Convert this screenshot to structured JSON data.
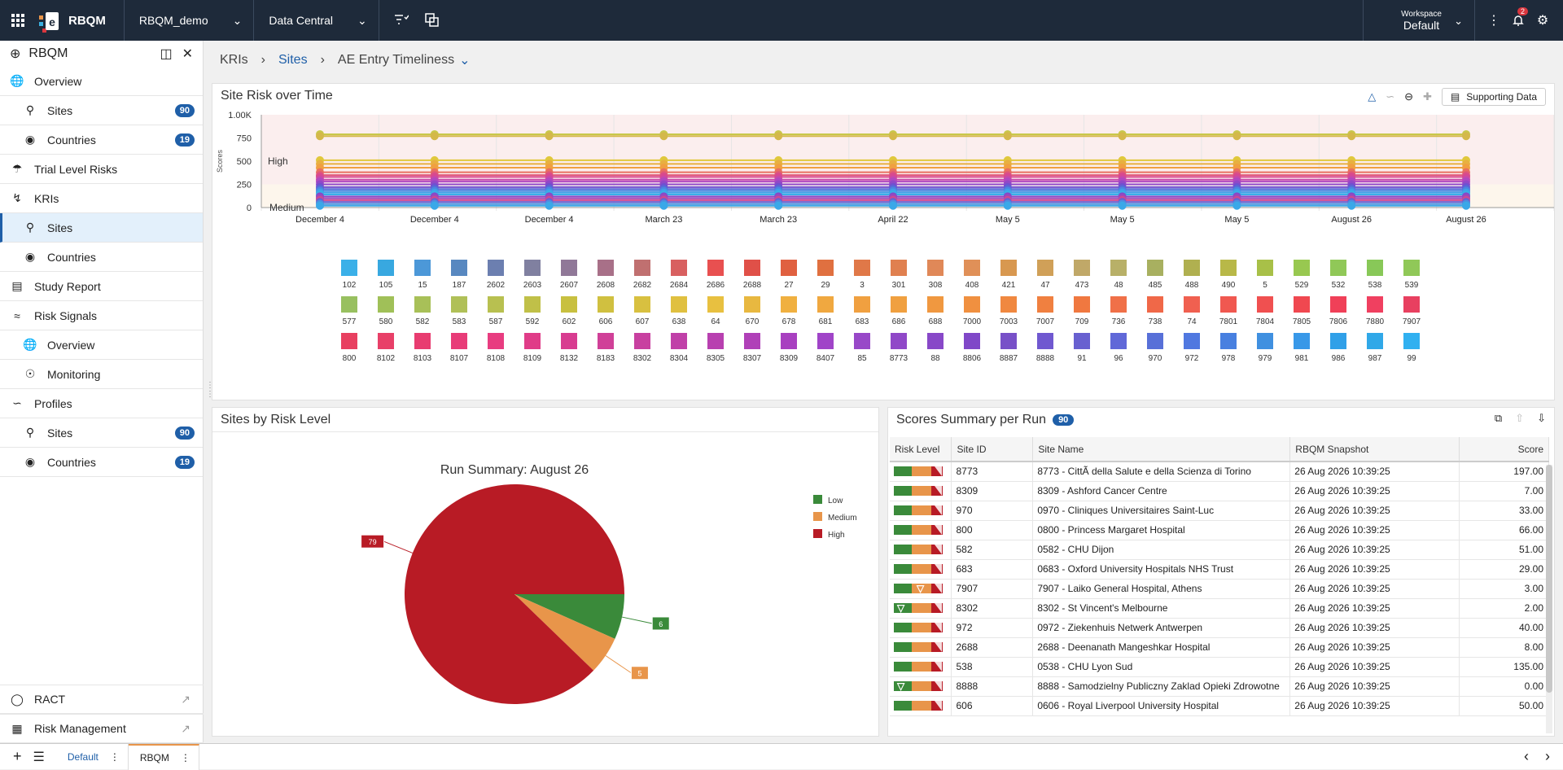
{
  "topbar": {
    "brand": "RBQM",
    "study": "RBQM_demo",
    "source": "Data Central",
    "workspace_label": "Workspace",
    "workspace_value": "Default",
    "notif_count": "2"
  },
  "sidebar": {
    "title": "RBQM",
    "items": [
      {
        "label": "Overview",
        "icon": "globe-icon",
        "sub": false
      },
      {
        "label": "Sites",
        "icon": "location-pin-icon",
        "sub": true,
        "count": "90"
      },
      {
        "label": "Countries",
        "icon": "globe-hand-icon",
        "sub": true,
        "count": "19"
      },
      {
        "label": "Trial Level Risks",
        "icon": "shield-icon",
        "sub": false
      },
      {
        "label": "KRIs",
        "icon": "lightning-icon",
        "sub": false
      },
      {
        "label": "Sites",
        "icon": "location-pin-icon",
        "sub": true,
        "active": true
      },
      {
        "label": "Countries",
        "icon": "globe-hand-icon",
        "sub": true
      },
      {
        "label": "Study Report",
        "icon": "document-icon",
        "sub": false
      },
      {
        "label": "Risk Signals",
        "icon": "signal-icon",
        "sub": false
      },
      {
        "label": "Overview",
        "icon": "globe-icon",
        "sub": true
      },
      {
        "label": "Monitoring",
        "icon": "eye-icon",
        "sub": true
      },
      {
        "label": "Profiles",
        "icon": "chart-icon",
        "sub": false
      },
      {
        "label": "Sites",
        "icon": "location-pin-icon",
        "sub": true,
        "count": "90"
      },
      {
        "label": "Countries",
        "icon": "globe-hand-icon",
        "sub": true,
        "count": "19"
      }
    ],
    "bottom": [
      {
        "label": "RACT",
        "icon": "ract-icon"
      },
      {
        "label": "Risk Management",
        "icon": "risk-mgmt-icon"
      }
    ]
  },
  "breadcrumb": {
    "b1": "KRIs",
    "b2": "Sites",
    "b3": "AE Entry Timeliness"
  },
  "risk_time": {
    "title": "Site Risk over Time",
    "supporting": "Supporting Data",
    "ylabel": "Scores",
    "zone_high": "High",
    "zone_medium": "Medium"
  },
  "sites_by_risk": {
    "title": "Sites by Risk Level"
  },
  "scores": {
    "title": "Scores Summary per Run",
    "count": "90",
    "columns": [
      "Risk Level",
      "Site ID",
      "Site Name",
      "RBQM Snapshot",
      "Score"
    ],
    "rows": [
      {
        "mark": "",
        "id": "8773",
        "name": "8773 - CittÃ  della Salute e della Scienza di Torino",
        "snap": "26 Aug 2026 10:39:25",
        "score": "197.00"
      },
      {
        "mark": "",
        "id": "8309",
        "name": "8309 - Ashford Cancer Centre",
        "snap": "26 Aug 2026 10:39:25",
        "score": "7.00"
      },
      {
        "mark": "",
        "id": "970",
        "name": "0970 - Cliniques Universitaires Saint-Luc",
        "snap": "26 Aug 2026 10:39:25",
        "score": "33.00"
      },
      {
        "mark": "",
        "id": "800",
        "name": "0800 - Princess Margaret Hospital",
        "snap": "26 Aug 2026 10:39:25",
        "score": "66.00"
      },
      {
        "mark": "",
        "id": "582",
        "name": "0582 - CHU Dijon",
        "snap": "26 Aug 2026 10:39:25",
        "score": "51.00"
      },
      {
        "mark": "",
        "id": "683",
        "name": "0683 - Oxford University Hospitals NHS Trust",
        "snap": "26 Aug 2026 10:39:25",
        "score": "29.00"
      },
      {
        "mark": "medium",
        "id": "7907",
        "name": "7907 - Laiko General Hospital, Athens",
        "snap": "26 Aug 2026 10:39:25",
        "score": "3.00"
      },
      {
        "mark": "low",
        "id": "8302",
        "name": "8302 - St Vincent's Melbourne",
        "snap": "26 Aug 2026 10:39:25",
        "score": "2.00"
      },
      {
        "mark": "",
        "id": "972",
        "name": "0972 - Ziekenhuis Netwerk Antwerpen",
        "snap": "26 Aug 2026 10:39:25",
        "score": "40.00"
      },
      {
        "mark": "",
        "id": "2688",
        "name": "2688 - Deenanath Mangeshkar Hospital",
        "snap": "26 Aug 2026 10:39:25",
        "score": "8.00"
      },
      {
        "mark": "",
        "id": "538",
        "name": "0538 - CHU Lyon Sud",
        "snap": "26 Aug 2026 10:39:25",
        "score": "135.00"
      },
      {
        "mark": "low",
        "id": "8888",
        "name": "8888 - Samodzielny Publiczny Zaklad Opieki Zdrowotne",
        "snap": "26 Aug 2026 10:39:25",
        "score": "0.00"
      },
      {
        "mark": "",
        "id": "606",
        "name": "0606 - Royal Liverpool University Hospital",
        "snap": "26 Aug 2026 10:39:25",
        "score": "50.00"
      }
    ]
  },
  "tabs": {
    "t1": "Default",
    "t2": "RBQM"
  },
  "chart_data": [
    {
      "type": "line",
      "x": [
        "December 4",
        "December 4",
        "December 4",
        "March 23",
        "March 23",
        "April 22",
        "May 5",
        "May 5",
        "May 5",
        "August 26",
        "August 26"
      ],
      "ylabel": "Scores",
      "ylim": [
        0,
        1000
      ],
      "yticks": [
        "0",
        "250",
        "500",
        "750",
        "1.00K"
      ],
      "series_levels": [
        790,
        770,
        510,
        470,
        430,
        380,
        350,
        330,
        300,
        280,
        250,
        220,
        200,
        180,
        160,
        140,
        120,
        100,
        80,
        60,
        40,
        20
      ],
      "legend": [
        "102",
        "105",
        "15",
        "187",
        "2602",
        "2603",
        "2607",
        "2608",
        "2682",
        "2684",
        "2686",
        "2688",
        "27",
        "29",
        "3",
        "301",
        "308",
        "408",
        "421",
        "47",
        "473",
        "48",
        "485",
        "488",
        "490",
        "5",
        "529",
        "532",
        "538",
        "539",
        "577",
        "580",
        "582",
        "583",
        "587",
        "592",
        "602",
        "606",
        "607",
        "638",
        "64",
        "670",
        "678",
        "681",
        "683",
        "686",
        "688",
        "7000",
        "7003",
        "7007",
        "709",
        "736",
        "738",
        "74",
        "7801",
        "7804",
        "7805",
        "7806",
        "7880",
        "7907",
        "800",
        "8102",
        "8103",
        "8107",
        "8108",
        "8109",
        "8132",
        "8183",
        "8302",
        "8304",
        "8305",
        "8307",
        "8309",
        "8407",
        "85",
        "8773",
        "88",
        "8806",
        "8887",
        "8888",
        "91",
        "96",
        "970",
        "972",
        "978",
        "979",
        "981",
        "986",
        "987",
        "99"
      ],
      "grid": true
    },
    {
      "type": "pie",
      "title": "Run Summary: August 26",
      "categories": [
        "Low",
        "Medium",
        "High"
      ],
      "values": [
        6,
        5,
        79
      ],
      "colors": [
        "#3a8a3a",
        "#e8954a",
        "#b81b25"
      ],
      "legend": "right"
    }
  ]
}
